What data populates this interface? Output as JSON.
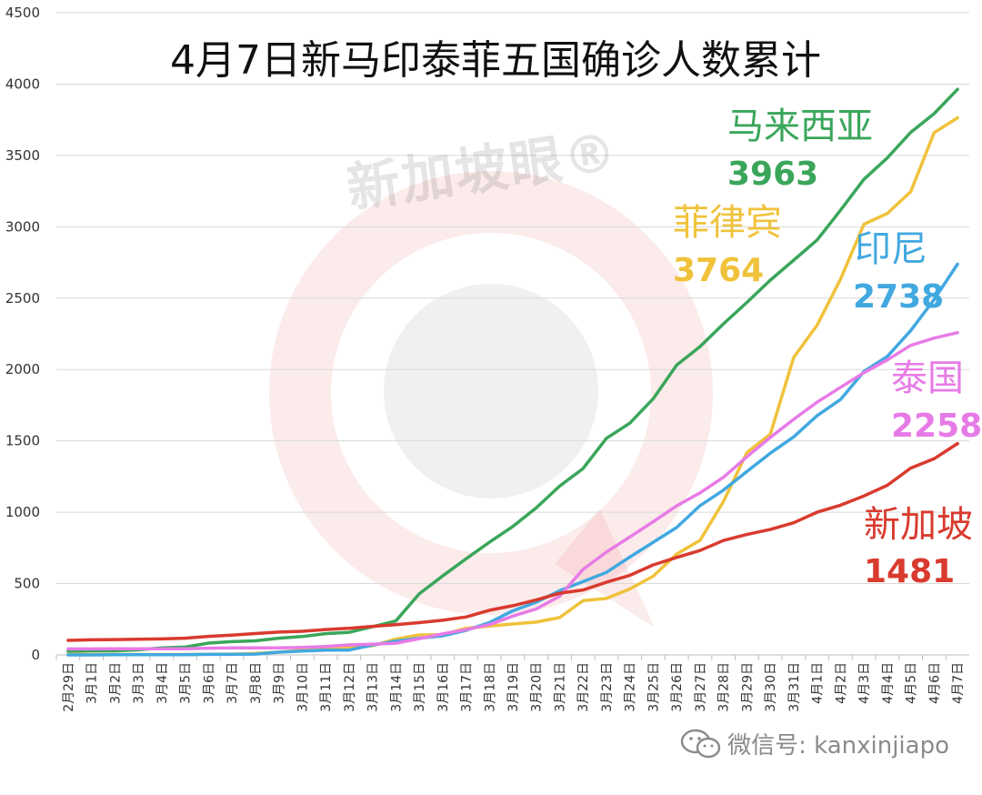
{
  "title": "4月7日新马印泰菲五国确诊人数累计",
  "watermark": "新加坡眼®",
  "footer": "微信号: kanxinjiapo",
  "chart_data": {
    "type": "line",
    "title": "4月7日新马印泰菲五国确诊人数累计",
    "xlabel": "",
    "ylabel": "",
    "ylim": [
      0,
      4500
    ],
    "yticks": [
      0,
      500,
      1000,
      1500,
      2000,
      2500,
      3000,
      3500,
      4000,
      4500
    ],
    "grid": true,
    "legend": "inline-labels-right",
    "categories": [
      "2月29日",
      "3月1日",
      "3月2日",
      "3月3日",
      "3月4日",
      "3月5日",
      "3月6日",
      "3月7日",
      "3月8日",
      "3月9日",
      "3月10日",
      "3月11日",
      "3月12日",
      "3月13日",
      "3月14日",
      "3月15日",
      "3月16日",
      "3月17日",
      "3月18日",
      "3月19日",
      "3月20日",
      "3月21日",
      "3月22日",
      "3月23日",
      "3月24日",
      "3月25日",
      "3月26日",
      "3月27日",
      "3月28日",
      "3月29日",
      "3月30日",
      "3月31日",
      "4月1日",
      "4月2日",
      "4月3日",
      "4月4日",
      "4月5日",
      "4月6日",
      "4月7日"
    ],
    "series": [
      {
        "name": "马来西亚",
        "label_value": "3963",
        "color": "#3aa65a",
        "values": [
          25,
          29,
          29,
          36,
          50,
          55,
          83,
          93,
          99,
          117,
          129,
          149,
          158,
          197,
          238,
          428,
          553,
          673,
          790,
          900,
          1030,
          1183,
          1306,
          1518,
          1624,
          1796,
          2031,
          2161,
          2320,
          2470,
          2626,
          2766,
          2908,
          3116,
          3333,
          3483,
          3662,
          3793,
          3963
        ]
      },
      {
        "name": "菲律宾",
        "label_value": "3764",
        "color": "#f0c23b",
        "values": [
          3,
          3,
          3,
          3,
          3,
          3,
          5,
          6,
          10,
          20,
          33,
          49,
          52,
          64,
          111,
          140,
          142,
          187,
          202,
          217,
          230,
          262,
          380,
          396,
          462,
          552,
          707,
          803,
          1075,
          1418,
          1546,
          2084,
          2311,
          2633,
          3018,
          3094,
          3246,
          3660,
          3764
        ]
      },
      {
        "name": "印尼",
        "label_value": "2738",
        "color": "#41a8e0",
        "values": [
          0,
          0,
          2,
          2,
          2,
          2,
          4,
          4,
          6,
          19,
          27,
          34,
          34,
          69,
          96,
          117,
          134,
          172,
          227,
          309,
          369,
          450,
          514,
          579,
          686,
          790,
          893,
          1046,
          1155,
          1285,
          1414,
          1528,
          1677,
          1790,
          1986,
          2092,
          2273,
          2491,
          2738
        ]
      },
      {
        "name": "泰国",
        "label_value": "2258",
        "color": "#e77be6",
        "values": [
          42,
          42,
          43,
          43,
          43,
          43,
          47,
          50,
          50,
          50,
          53,
          59,
          70,
          75,
          82,
          114,
          147,
          177,
          212,
          272,
          322,
          411,
          599,
          721,
          827,
          934,
          1045,
          1136,
          1245,
          1388,
          1524,
          1651,
          1771,
          1875,
          1978,
          2067,
          2169,
          2220,
          2258
        ]
      },
      {
        "name": "新加坡",
        "label_value": "1481",
        "color": "#d93a2e",
        "values": [
          102,
          106,
          108,
          110,
          112,
          117,
          130,
          138,
          150,
          160,
          166,
          178,
          187,
          200,
          212,
          226,
          243,
          266,
          313,
          345,
          385,
          432,
          455,
          509,
          558,
          631,
          683,
          732,
          802,
          844,
          879,
          926,
          1000,
          1049,
          1114,
          1189,
          1309,
          1375,
          1481
        ]
      }
    ]
  }
}
